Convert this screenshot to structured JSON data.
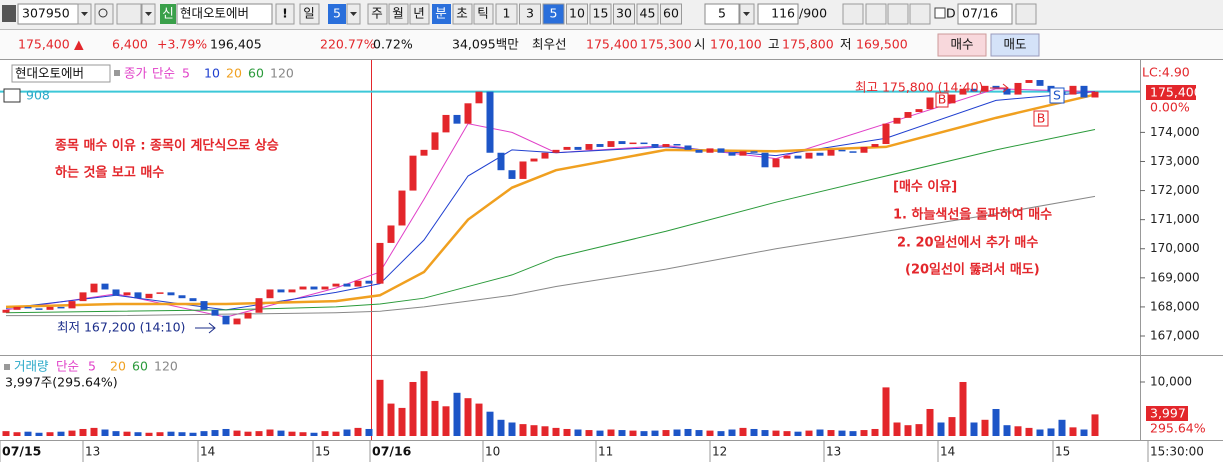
{
  "toolbar": {
    "code": "307950",
    "badge": "신",
    "name": "현대오토에버",
    "alert": "!",
    "day": "일",
    "day_n": "5",
    "week": "주",
    "month": "월",
    "year": "년",
    "minute": "분",
    "second": "초",
    "tick": "틱",
    "intervals": [
      "1",
      "3",
      "5",
      "10",
      "15",
      "30",
      "45",
      "60"
    ],
    "custom_n": "5",
    "count": "116",
    "count_max": "/900",
    "date_flag": "D",
    "date": "07/16"
  },
  "quote": {
    "price": "175,400",
    "arrow": "▲",
    "change": "6,400",
    "change_pct": "+3.79%",
    "volume": "196,405",
    "volume_ratio": "220.77%",
    "turnover": "0.72%",
    "amount": "34,095백만",
    "best_label": "최우선",
    "ask": "175,400",
    "bid": "175,300",
    "open_label": "시",
    "open": "170,100",
    "high_label": "고",
    "high": "175,800",
    "low_label": "저",
    "low": "169,500",
    "buy": "매수",
    "sell": "매도"
  },
  "price_legend": {
    "name": "현대오토에버",
    "kind": "종가",
    "method": "단순",
    "count": "908"
  },
  "volume_legend": {
    "name": "거래량",
    "method": "단순",
    "periods": [
      "5",
      "20",
      "60",
      "120"
    ],
    "last": "3,997주(295.64%)"
  },
  "annotations": {
    "reason1": "종목 매수 이유 : 종목이 계단식으로 상승",
    "reason2": "하는 것을 보고 매수",
    "title": "[매수 이유]",
    "point1": "1. 하늘색선을 돌파하여 매수",
    "point2": "2. 20일선에서 추가 매수",
    "point3": "(20일선이 뚫려서 매도)",
    "high": "최고 175,800 (14:40)",
    "low": "최저 167,200 (14:10)",
    "lc": "LC:4.90",
    "last_price": "175,400",
    "last_pct": "0.00%",
    "sell_mark": "S",
    "buy_mark": "B",
    "last_volume": "3,997",
    "last_volume_pct": "295.64%"
  },
  "chart_data": {
    "type": "candlestick",
    "up_color": "#e3262b",
    "down_color": "#1d55c7",
    "open": [
      167800,
      167900,
      168000,
      167950,
      167900,
      168000,
      167950,
      168200,
      168500,
      168800,
      168600,
      168400,
      168500,
      168300,
      168450,
      168500,
      168400,
      168300,
      168200,
      167900,
      167700,
      167400,
      167600,
      167800,
      168300,
      168600,
      168500,
      168600,
      168700,
      168600,
      168700,
      168800,
      168700,
      168900,
      168800,
      170200,
      170800,
      172000,
      173200,
      173400,
      174000,
      174600,
      174300,
      175000,
      175400,
      173300,
      172700,
      172400,
      173000,
      173100,
      173300,
      173400,
      173500,
      173400,
      173600,
      173500,
      173700,
      173600,
      173650,
      173600,
      173500,
      173600,
      173550,
      173400,
      173300,
      173450,
      173300,
      173200,
      173350,
      173300,
      172800,
      173100,
      173200,
      173100,
      173300,
      173200,
      173400,
      173350,
      173300,
      173500,
      173600,
      174300,
      174500,
      174700,
      174800,
      175200,
      175000,
      175300,
      175500,
      175400,
      175600,
      175500,
      175300,
      175700,
      175800,
      175600,
      175400,
      175300,
      175600,
      175200
    ],
    "close": [
      167900,
      168000,
      167950,
      167900,
      168000,
      167950,
      168200,
      168500,
      168800,
      168600,
      168400,
      168500,
      168300,
      168450,
      168500,
      168400,
      168300,
      168200,
      167900,
      167700,
      167400,
      167600,
      167800,
      168300,
      168600,
      168500,
      168600,
      168700,
      168600,
      168700,
      168800,
      168700,
      168900,
      168800,
      170200,
      170800,
      172000,
      173200,
      173400,
      174000,
      174600,
      174300,
      175000,
      175400,
      173300,
      172700,
      172400,
      173000,
      173100,
      173300,
      173400,
      173500,
      173400,
      173600,
      173500,
      173700,
      173600,
      173650,
      173600,
      173500,
      173600,
      173550,
      173400,
      173300,
      173450,
      173300,
      173200,
      173350,
      173300,
      172800,
      173100,
      173200,
      173100,
      173300,
      173200,
      173400,
      173350,
      173300,
      173500,
      173600,
      174300,
      174500,
      174700,
      174800,
      175200,
      175000,
      175300,
      175500,
      175400,
      175600,
      175500,
      175300,
      175700,
      175800,
      175600,
      175400,
      175300,
      175600,
      175200,
      175400
    ],
    "volume": [
      900,
      700,
      800,
      600,
      700,
      800,
      1000,
      1300,
      1500,
      1200,
      900,
      800,
      700,
      600,
      700,
      800,
      700,
      600,
      900,
      1100,
      1300,
      1000,
      800,
      900,
      1200,
      1000,
      800,
      700,
      600,
      900,
      800,
      1200,
      1500,
      1300,
      10400,
      6000,
      5200,
      10000,
      12000,
      6500,
      5500,
      8000,
      7000,
      6000,
      4500,
      3000,
      2500,
      2200,
      2000,
      1800,
      1500,
      1300,
      1200,
      1100,
      1000,
      1200,
      1100,
      1000,
      900,
      1000,
      1100,
      1200,
      1300,
      1100,
      1000,
      900,
      1200,
      1500,
      1300,
      1100,
      1000,
      900,
      800,
      1000,
      1200,
      1100,
      1000,
      900,
      1100,
      1300,
      9000,
      2500,
      2000,
      2200,
      5000,
      2500,
      3500,
      10000,
      2500,
      3000,
      5000,
      2000,
      1800,
      1500,
      1200,
      1400,
      3000,
      1600,
      1200,
      4000
    ],
    "ylim": [
      166450,
      176420
    ],
    "yticks": [
      {
        "value": 167000,
        "label": "167,000"
      },
      {
        "value": 168000,
        "label": "168,000"
      },
      {
        "value": 169000,
        "label": "169,000"
      },
      {
        "value": 170000,
        "label": "170,000"
      },
      {
        "value": 171000,
        "label": "171,000"
      },
      {
        "value": 172000,
        "label": "172,000"
      },
      {
        "value": 173000,
        "label": "173,000"
      },
      {
        "value": 174000,
        "label": "174,000"
      }
    ],
    "volume_ylim": [
      0,
      13700
    ],
    "volume_yticks": [
      {
        "value": 10000,
        "label": "10,000"
      }
    ],
    "ref_line": 175400,
    "ref_color": "#3cc8d8",
    "series": [
      {
        "name": "5",
        "color": "#e040c8",
        "width": 1,
        "x": [
          0,
          10,
          20,
          30,
          34,
          38,
          42,
          46,
          50,
          60,
          70,
          80,
          90,
          99
        ],
        "values": [
          167900,
          168450,
          167650,
          168650,
          169200,
          171700,
          174300,
          174000,
          173300,
          173550,
          173100,
          174300,
          175500,
          175400
        ]
      },
      {
        "name": "10",
        "color": "#2040d0",
        "width": 1,
        "x": [
          0,
          10,
          20,
          30,
          34,
          38,
          42,
          46,
          50,
          60,
          70,
          80,
          90,
          99
        ],
        "values": [
          167950,
          168400,
          167900,
          168500,
          168800,
          170300,
          172500,
          173400,
          173300,
          173500,
          173200,
          173800,
          175100,
          175400
        ]
      },
      {
        "name": "20",
        "color": "#f0a020",
        "width": 2.5,
        "x": [
          0,
          10,
          20,
          30,
          34,
          38,
          42,
          46,
          50,
          60,
          70,
          80,
          90,
          99
        ],
        "values": [
          168000,
          168100,
          168100,
          168200,
          168400,
          169200,
          171000,
          172100,
          172700,
          173400,
          173350,
          173500,
          174500,
          175300
        ]
      },
      {
        "name": "60",
        "color": "#2a9a3a",
        "width": 1,
        "x": [
          0,
          10,
          20,
          30,
          34,
          38,
          42,
          46,
          50,
          60,
          70,
          80,
          90,
          99
        ],
        "values": [
          167800,
          167850,
          167900,
          168000,
          168100,
          168300,
          168700,
          169100,
          169700,
          170600,
          171600,
          172500,
          173400,
          174100
        ]
      },
      {
        "name": "120",
        "color": "#888888",
        "width": 1,
        "x": [
          0,
          10,
          20,
          30,
          34,
          38,
          42,
          46,
          50,
          60,
          70,
          80,
          90,
          99
        ],
        "values": [
          167700,
          167700,
          167750,
          167800,
          167850,
          168000,
          168200,
          168400,
          168700,
          169300,
          170000,
          170600,
          171200,
          171800
        ]
      }
    ],
    "time_labels": [
      "07/15",
      "13",
      "14",
      "15",
      "07/16",
      "10",
      "11",
      "12",
      "13",
      "14",
      "15",
      "15:30:00"
    ]
  }
}
